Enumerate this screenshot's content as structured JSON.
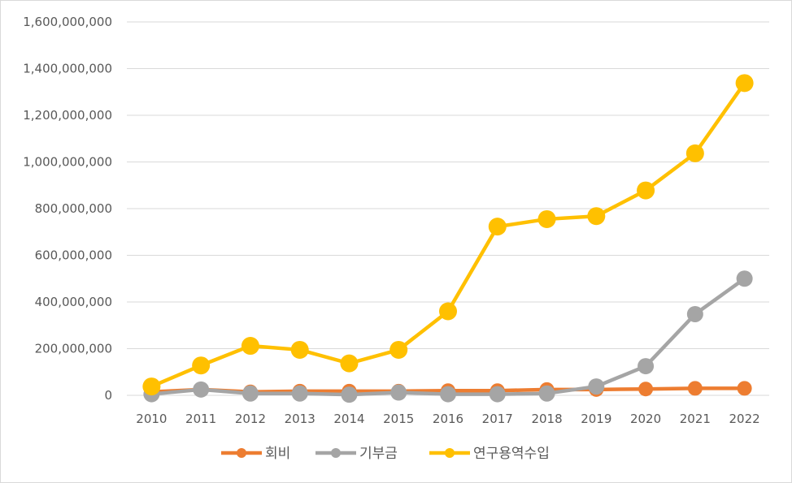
{
  "chart_data": {
    "type": "line",
    "title": "",
    "xlabel": "",
    "ylabel": "",
    "categories": [
      "2010",
      "2011",
      "2012",
      "2013",
      "2014",
      "2015",
      "2016",
      "2017",
      "2018",
      "2019",
      "2020",
      "2021",
      "2022"
    ],
    "ylim": [
      0,
      1600000000
    ],
    "yticks": [
      0,
      200000000,
      400000000,
      600000000,
      800000000,
      1000000000,
      1200000000,
      1400000000,
      1600000000
    ],
    "ytick_labels": [
      "0",
      "200,000,000",
      "400,000,000",
      "600,000,000",
      "800,000,000",
      "1,000,000,000",
      "1,200,000,000",
      "1,400,000,000",
      "1,600,000,000"
    ],
    "grid": "horizontal",
    "legend_position": "bottom",
    "series": [
      {
        "name": "회비",
        "color": "#ED7D31",
        "values": [
          15000000,
          25000000,
          15000000,
          18000000,
          18000000,
          18000000,
          20000000,
          20000000,
          25000000,
          25000000,
          27000000,
          30000000,
          30000000
        ]
      },
      {
        "name": "기부금",
        "color": "#A5A5A5",
        "values": [
          5000000,
          25000000,
          8000000,
          8000000,
          3000000,
          12000000,
          5000000,
          5000000,
          8000000,
          38000000,
          125000000,
          348000000,
          500000000
        ]
      },
      {
        "name": "연구용역수입",
        "color": "#FFC000",
        "values": [
          38000000,
          128000000,
          212000000,
          195000000,
          137000000,
          195000000,
          360000000,
          723000000,
          755000000,
          768000000,
          878000000,
          1037000000,
          1338000000
        ]
      }
    ]
  }
}
